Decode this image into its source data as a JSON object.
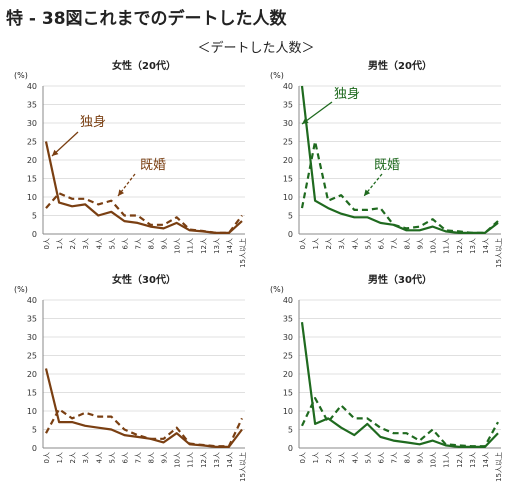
{
  "figure": {
    "title": "特 - 38図これまでのデートした人数",
    "subtitle": "＜デートした人数＞"
  },
  "colors": {
    "female": "#7a3f12",
    "male": "#1f6a1f",
    "axis": "#888888",
    "grid": "#e0e0e0"
  },
  "chart_data": [
    {
      "type": "line",
      "title": "女性（20代）",
      "unit": "(%)",
      "categories": [
        "0人",
        "1人",
        "2人",
        "3人",
        "4人",
        "5人",
        "6人",
        "7人",
        "8人",
        "9人",
        "10人",
        "11人",
        "12人",
        "13人",
        "14人",
        "15人以上"
      ],
      "ylim": [
        0,
        40
      ],
      "yticks": [
        0,
        5,
        10,
        15,
        20,
        25,
        30,
        35,
        40
      ],
      "series": [
        {
          "name": "独身",
          "style": "solid",
          "values": [
            25,
            8.5,
            7.5,
            8,
            5,
            6,
            3.5,
            3,
            2,
            1.5,
            3,
            1,
            0.7,
            0.3,
            0.3,
            3.5
          ]
        },
        {
          "name": "既婚",
          "style": "dashed",
          "values": [
            7,
            11,
            9.5,
            9.5,
            8,
            9,
            5,
            5,
            2.5,
            2.5,
            4.5,
            1.2,
            0.8,
            0.3,
            0.3,
            5
          ]
        }
      ],
      "annotations": [
        {
          "text": "独身",
          "series": 0
        },
        {
          "text": "既婚",
          "series": 1
        }
      ],
      "grid": true
    },
    {
      "type": "line",
      "title": "男性（20代）",
      "unit": "(%)",
      "categories": [
        "0人",
        "1人",
        "2人",
        "3人",
        "4人",
        "5人",
        "6人",
        "7人",
        "8人",
        "9人",
        "10人",
        "11人",
        "12人",
        "13人",
        "14人",
        "15人以上"
      ],
      "ylim": [
        0,
        40
      ],
      "yticks": [
        0,
        5,
        10,
        15,
        20,
        25,
        30,
        35,
        40
      ],
      "series": [
        {
          "name": "独身",
          "style": "solid",
          "values": [
            40,
            9,
            7,
            5.5,
            4.5,
            4.5,
            3,
            2.5,
            1,
            1,
            2,
            0.7,
            0.3,
            0.3,
            0.3,
            3
          ]
        },
        {
          "name": "既婚",
          "style": "dashed",
          "values": [
            7,
            25,
            9,
            10.5,
            6.5,
            6.5,
            7,
            2.5,
            1.5,
            2,
            4,
            1,
            0.7,
            0.3,
            0.3,
            3.5
          ]
        }
      ],
      "annotations": [
        {
          "text": "独身",
          "series": 0
        },
        {
          "text": "既婚",
          "series": 1
        }
      ],
      "grid": true
    },
    {
      "type": "line",
      "title": "女性（30代）",
      "unit": "(%)",
      "categories": [
        "0人",
        "1人",
        "2人",
        "3人",
        "4人",
        "5人",
        "6人",
        "7人",
        "8人",
        "9人",
        "10人",
        "11人",
        "12人",
        "13人",
        "14人",
        "15人以上"
      ],
      "ylim": [
        0,
        40
      ],
      "yticks": [
        0,
        5,
        10,
        15,
        20,
        25,
        30,
        35,
        40
      ],
      "series": [
        {
          "name": "独身",
          "style": "solid",
          "values": [
            21.5,
            7,
            7,
            6,
            5.5,
            5,
            3.5,
            3,
            2.5,
            1.5,
            4,
            1,
            0.7,
            0.3,
            0.3,
            5
          ]
        },
        {
          "name": "既婚",
          "style": "dashed",
          "values": [
            4,
            10.5,
            8,
            9.5,
            8.5,
            8.5,
            5,
            3.5,
            2.5,
            2.5,
            5.5,
            1.2,
            0.8,
            0.5,
            0.5,
            8
          ]
        }
      ],
      "annotations": [],
      "grid": true
    },
    {
      "type": "line",
      "title": "男性（30代）",
      "unit": "(%)",
      "categories": [
        "0人",
        "1人",
        "2人",
        "3人",
        "4人",
        "5人",
        "6人",
        "7人",
        "8人",
        "9人",
        "10人",
        "11人",
        "12人",
        "13人",
        "14人",
        "15人以上"
      ],
      "ylim": [
        0,
        40
      ],
      "yticks": [
        0,
        5,
        10,
        15,
        20,
        25,
        30,
        35,
        40
      ],
      "series": [
        {
          "name": "独身",
          "style": "solid",
          "values": [
            34,
            6.5,
            8,
            5.5,
            3.5,
            6.5,
            3,
            2,
            1.5,
            1,
            2,
            0.7,
            0.3,
            0.3,
            0.3,
            4
          ]
        },
        {
          "name": "既婚",
          "style": "dashed",
          "values": [
            6,
            13.5,
            7,
            11.5,
            8,
            8,
            5.5,
            4,
            4,
            2,
            5,
            1,
            0.7,
            0.5,
            0.5,
            7
          ]
        }
      ],
      "annotations": [],
      "grid": true
    }
  ]
}
